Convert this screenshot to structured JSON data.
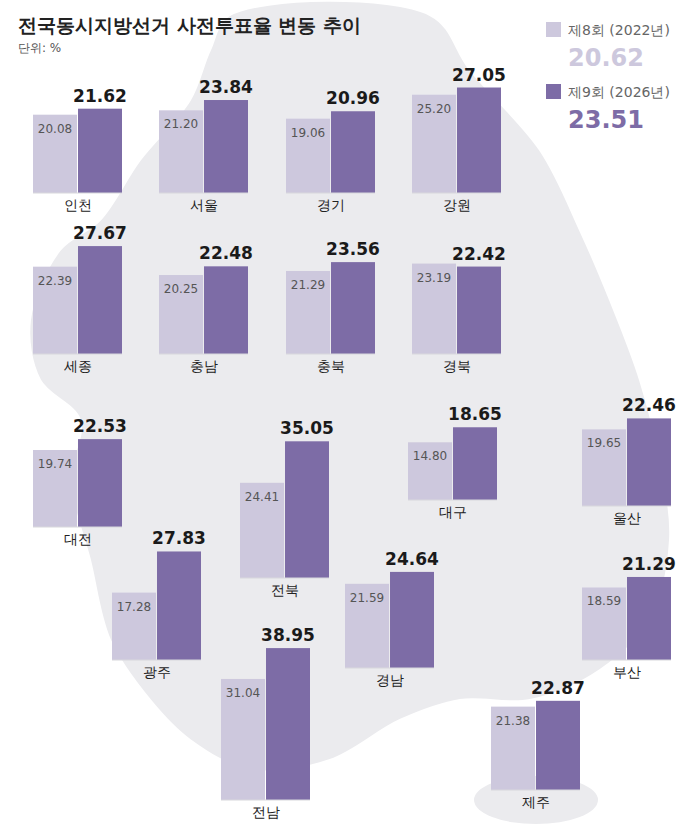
{
  "chart_data": {
    "type": "bar",
    "title": "전국동시지방선거 사전투표율 변동 추이",
    "subtitle": "단위: %",
    "categories": [
      "인천",
      "서울",
      "경기",
      "강원",
      "세종",
      "충남",
      "충북",
      "경북",
      "대전",
      "전북",
      "대구",
      "울산",
      "광주",
      "경남",
      "부산",
      "전남",
      "제주"
    ],
    "series": [
      {
        "name": "제8회 (2022년)",
        "color": "#cdc8dd",
        "total": 20.62,
        "values": [
          20.08,
          21.2,
          19.06,
          25.2,
          22.39,
          20.25,
          21.29,
          23.19,
          19.74,
          24.41,
          14.8,
          19.65,
          17.28,
          21.59,
          18.59,
          31.04,
          21.38
        ],
        "value_labels": [
          "20.08",
          "21.20",
          "19.06",
          "25.20",
          "22.39",
          "20.25",
          "21.29",
          "23.19",
          "19.74",
          "24.41",
          "14.80",
          "19.65",
          "17.28",
          "21.59",
          "18.59",
          "31.04",
          "21.38"
        ]
      },
      {
        "name": "제9회 (2026년)",
        "color": "#7d6ca6",
        "total": 23.51,
        "values": [
          21.62,
          23.84,
          20.96,
          27.05,
          27.67,
          22.48,
          23.56,
          22.42,
          22.53,
          35.05,
          18.65,
          22.46,
          27.83,
          24.64,
          21.29,
          38.95,
          22.87
        ],
        "value_labels": [
          "21.62",
          "23.84",
          "20.96",
          "27.05",
          "27.67",
          "22.48",
          "23.56",
          "22.42",
          "22.53",
          "35.05",
          "18.65",
          "22.46",
          "27.83",
          "24.64",
          "21.29",
          "38.95",
          "22.87"
        ]
      }
    ],
    "ylim": [
      0,
      40
    ],
    "data_labels": true,
    "tick_labels": false,
    "legend": "top-right"
  }
}
